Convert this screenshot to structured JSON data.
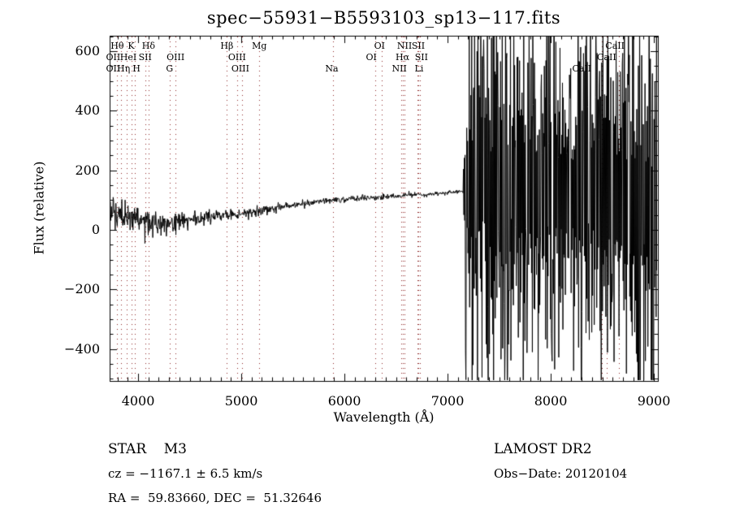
{
  "chart_data": {
    "type": "line",
    "title": "spec−55931−B5593103_sp13−117.fits",
    "xlabel": "Wavelength (Å)",
    "ylabel": "Flux (relative)",
    "xlim": [
      3724,
      9039
    ],
    "ylim": [
      -507,
      652
    ],
    "x_ticks": [
      4000,
      5000,
      6000,
      7000,
      8000,
      9000
    ],
    "x_minor_step": 100,
    "y_ticks": [
      -400,
      -200,
      0,
      200,
      400,
      600
    ],
    "y_minor_step": 50,
    "grid": false,
    "legend": "none",
    "line_color": "#000000",
    "marker_line_color": "#8b2222",
    "spectral_lines": [
      {
        "label": "OII",
        "wavelength": 3727,
        "row": 2,
        "dx": 4
      },
      {
        "label": "OII",
        "wavelength": 3727,
        "row": 3,
        "dx": 4
      },
      {
        "label": "Hθ",
        "wavelength": 3798,
        "row": 1,
        "dx": 0
      },
      {
        "label": "Hη",
        "wavelength": 3835,
        "row": 3,
        "dx": 3
      },
      {
        "label": "HeI",
        "wavelength": 3889,
        "row": 2,
        "dx": 2
      },
      {
        "label": "K",
        "wavelength": 3933,
        "row": 1,
        "dx": 0
      },
      {
        "label": "H",
        "wavelength": 3968,
        "row": 3,
        "dx": 2
      },
      {
        "label": "SII",
        "wavelength": 4068,
        "row": 2,
        "dx": 0
      },
      {
        "label": "Hδ",
        "wavelength": 4101,
        "row": 1,
        "dx": 0
      },
      {
        "label": "G",
        "wavelength": 4305,
        "row": 3,
        "dx": 0
      },
      {
        "label": "OIII",
        "wavelength": 4363,
        "row": 2,
        "dx": 0
      },
      {
        "label": "Hβ",
        "wavelength": 4861,
        "row": 1,
        "dx": 0
      },
      {
        "label": "OIII",
        "wavelength": 4959,
        "row": 2,
        "dx": 0
      },
      {
        "label": "OIII",
        "wavelength": 5007,
        "row": 3,
        "dx": -2
      },
      {
        "label": "Mg",
        "wavelength": 5175,
        "row": 1,
        "dx": 0
      },
      {
        "label": "Na",
        "wavelength": 5893,
        "row": 3,
        "dx": -2
      },
      {
        "label": "OI",
        "wavelength": 6300,
        "row": 2,
        "dx": -5
      },
      {
        "label": "OI",
        "wavelength": 6364,
        "row": 1,
        "dx": -3
      },
      {
        "label": "NII",
        "wavelength": 6548,
        "row": 3,
        "dx": -2
      },
      {
        "label": "Hα",
        "wavelength": 6563,
        "row": 2,
        "dx": 0
      },
      {
        "label": "NII",
        "wavelength": 6583,
        "row": 1,
        "dx": 0
      },
      {
        "label": "Li",
        "wavelength": 6708,
        "row": 3,
        "dx": 2
      },
      {
        "label": "SII",
        "wavelength": 6716,
        "row": 1,
        "dx": 0
      },
      {
        "label": "SII",
        "wavelength": 6731,
        "row": 2,
        "dx": 2
      },
      {
        "label": "CaII",
        "wavelength": 8498,
        "row": 3,
        "dx": -25
      },
      {
        "label": "CaII",
        "wavelength": 8542,
        "row": 2,
        "dx": 0
      },
      {
        "label": "CaII",
        "wavelength": 8662,
        "row": 1,
        "dx": -5
      }
    ],
    "continuum_anchors": [
      [
        3724,
        40
      ],
      [
        3760,
        52
      ],
      [
        3820,
        44
      ],
      [
        3900,
        40
      ],
      [
        4000,
        36
      ],
      [
        4150,
        30
      ],
      [
        4280,
        26
      ],
      [
        4320,
        24
      ],
      [
        4450,
        33
      ],
      [
        4600,
        38
      ],
      [
        4750,
        44
      ],
      [
        4900,
        50
      ],
      [
        5050,
        58
      ],
      [
        5200,
        65
      ],
      [
        5400,
        78
      ],
      [
        5650,
        92
      ],
      [
        5900,
        101
      ],
      [
        6100,
        106
      ],
      [
        6300,
        110
      ],
      [
        6500,
        114
      ],
      [
        6700,
        118
      ],
      [
        6900,
        122
      ],
      [
        7100,
        128
      ],
      [
        7165,
        133
      ],
      [
        7400,
        145
      ],
      [
        7700,
        155
      ],
      [
        8000,
        140
      ],
      [
        8300,
        130
      ],
      [
        8600,
        140
      ],
      [
        8800,
        110
      ],
      [
        9039,
        40
      ]
    ],
    "noise_sigma_anchors": [
      [
        3724,
        55
      ],
      [
        3745,
        40
      ],
      [
        3800,
        28
      ],
      [
        3900,
        24
      ],
      [
        4000,
        22
      ],
      [
        4150,
        20
      ],
      [
        4300,
        22
      ],
      [
        4450,
        16
      ],
      [
        4600,
        12
      ],
      [
        4800,
        10
      ],
      [
        5000,
        9
      ],
      [
        5200,
        8
      ],
      [
        5500,
        6.5
      ],
      [
        5800,
        5.5
      ],
      [
        6100,
        5
      ],
      [
        6400,
        4.5
      ],
      [
        6700,
        4
      ],
      [
        7000,
        4
      ],
      [
        7150,
        4.5
      ],
      [
        7168,
        250
      ],
      [
        7250,
        300
      ],
      [
        7400,
        310
      ],
      [
        7550,
        330
      ],
      [
        7700,
        320
      ],
      [
        7850,
        290
      ],
      [
        8000,
        285
      ],
      [
        8150,
        295
      ],
      [
        8300,
        280
      ],
      [
        8450,
        290
      ],
      [
        8600,
        330
      ],
      [
        8750,
        320
      ],
      [
        8900,
        300
      ],
      [
        9039,
        290
      ]
    ],
    "sample_step": 4,
    "seed": 8675309
  },
  "annotations": {
    "class_label": "STAR    M3",
    "survey": "LAMOST DR2",
    "cz": "cz = −1167.1 ± 6.5 km/s",
    "obs_date": "Obs−Date: 20120104",
    "coords": "RA =  59.83660, DEC =  51.32646"
  }
}
